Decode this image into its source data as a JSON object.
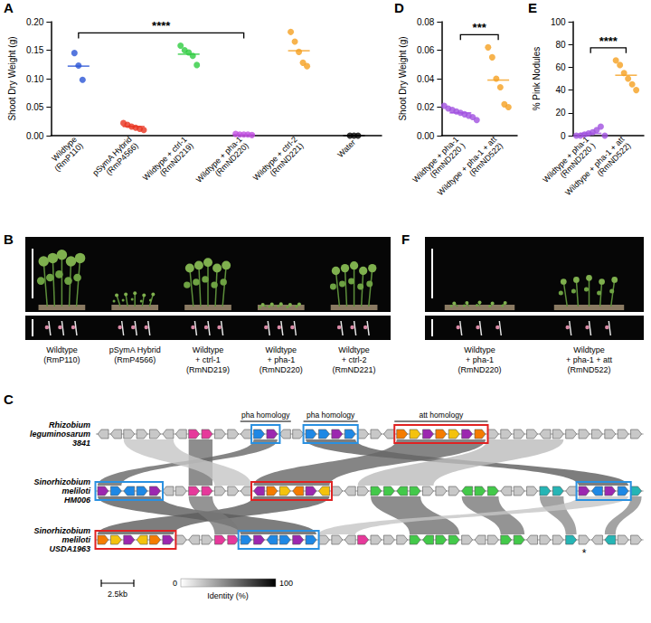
{
  "chart_data": [
    {
      "panel": "A",
      "type": "scatter",
      "ylabel": "Shoot Dry Weight (g)",
      "categories": [
        "Wildtype (RmP110)",
        "pSymA Hybrid (RmP4566)",
        "Wildtype + ctrl-1 (RmND219)",
        "Wildtype + pha-1 (RmND220)",
        "Wildtype + ctrl-2 (RmND221)",
        "Water"
      ],
      "values": [
        [
          0.145,
          0.123,
          0.098
        ],
        [
          0.022,
          0.019,
          0.016,
          0.014,
          0.012,
          0.01
        ],
        [
          0.158,
          0.15,
          0.146,
          0.14,
          0.124
        ],
        [
          0.003,
          0.002,
          0.002,
          0.002,
          0.001
        ],
        [
          0.182,
          0.165,
          0.147,
          0.128,
          0.122
        ],
        [
          0,
          0,
          0
        ]
      ],
      "means": [
        0.122,
        0.016,
        0.143,
        0.002,
        0.149,
        0
      ],
      "colors": [
        "#2b55d6",
        "#e8321e",
        "#2ecc40",
        "#c050e0",
        "#f5a020",
        "#000000"
      ],
      "ylim": [
        0,
        0.2
      ],
      "yticks": [
        {
          "value": 0,
          "label": "0.00"
        },
        {
          "value": 0.05,
          "label": "0.05"
        },
        {
          "value": 0.1,
          "label": "0.10"
        },
        {
          "value": 0.15,
          "label": "0.15"
        },
        {
          "value": 0.2,
          "label": "0.20"
        }
      ],
      "grid": false,
      "annotations": [
        {
          "text": "****",
          "from": "Wildtype (RmP110)",
          "to": "Wildtype + pha-1 (RmND220)"
        }
      ]
    },
    {
      "panel": "D",
      "type": "scatter",
      "ylabel": "Shoot Dry Weight (g)",
      "categories": [
        "Wildtype + pha-1 (RmND220 )",
        "Wildtype + pha-1 + att (RmND522)"
      ],
      "values": [
        [
          0.021,
          0.019,
          0.018,
          0.017,
          0.016,
          0.015,
          0.014,
          0.013,
          0.011
        ],
        [
          0.062,
          0.055,
          0.04,
          0.034,
          0.022,
          0.02
        ]
      ],
      "means": [
        0.016,
        0.039
      ],
      "colors": [
        "#a050e0",
        "#f5a020"
      ],
      "ylim": [
        0,
        0.08
      ],
      "yticks": [
        {
          "value": 0,
          "label": "0.00"
        },
        {
          "value": 0.02,
          "label": "0.02"
        },
        {
          "value": 0.04,
          "label": "0.04"
        },
        {
          "value": 0.06,
          "label": "0.06"
        },
        {
          "value": 0.08,
          "label": "0.08"
        }
      ],
      "grid": false,
      "annotations": [
        {
          "text": "***",
          "from": "Wildtype + pha-1 (RmND220 )",
          "to": "Wildtype + pha-1 + att (RmND522)"
        }
      ]
    },
    {
      "panel": "E",
      "type": "scatter",
      "ylabel": "% Pink Nodules",
      "categories": [
        "Wildtype + pha-1 (RmND220 )",
        "Wildtype + pha-1 + att (RmND522)"
      ],
      "values": [
        [
          0,
          0,
          1,
          2,
          3,
          5,
          8,
          0
        ],
        [
          66,
          62,
          55,
          50,
          45,
          40
        ]
      ],
      "means": [
        2,
        53
      ],
      "colors": [
        "#a050e0",
        "#f5a020"
      ],
      "ylim": [
        0,
        100
      ],
      "yticks": [
        0,
        20,
        40,
        60,
        80,
        100
      ],
      "grid": false,
      "annotations": [
        {
          "text": "****",
          "from": "Wildtype + pha-1 (RmND220 )",
          "to": "Wildtype + pha-1 + att (RmND522)"
        }
      ]
    }
  ],
  "photos": [
    {
      "panel": "B",
      "labels": [
        "Wildtype (RmP110)",
        "pSymA Hybrid (RmP4566)",
        "Wildtype + ctrl-1 (RmND219)",
        "Wildtype + pha-1 (RmND220)",
        "Wildtype + ctrl-2 (RmND221)"
      ]
    },
    {
      "panel": "F",
      "labels": [
        "Wildtype + pha-1 (RmND220)",
        "Wildtype + pha-1 + att (RmND522)"
      ]
    }
  ],
  "synteny": {
    "panel": "C",
    "tracks": [
      "Rhizobium leguminosarum 3841",
      "Sinorhizobium meliloti HM006",
      "Sinorhizobium meliloti USDA1963"
    ],
    "regions": [
      {
        "label": "pha homology"
      },
      {
        "label": "pha homology"
      },
      {
        "label": "att homology"
      }
    ],
    "scale_bar": "2.5kb",
    "identity_legend": {
      "title": "Identity (%)",
      "min": 0,
      "max": 100
    },
    "annotation": "*"
  }
}
